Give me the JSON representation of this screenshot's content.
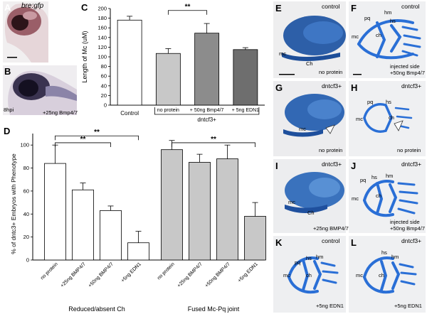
{
  "labels": {
    "a": "A",
    "b": "B",
    "c": "C",
    "d": "D",
    "e": "E",
    "f": "F",
    "g": "G",
    "h": "H",
    "i": "I",
    "j": "J",
    "k": "K",
    "l": "L"
  },
  "photos": {
    "a": {
      "title": "bre:gfp"
    },
    "b": {
      "time": "8hpi",
      "treatment": "+25ng Bmp4/7"
    },
    "e": {
      "title": "control",
      "treatment": "no protein",
      "mc": "mc",
      "ch": "Ch"
    },
    "f": {
      "title": "control",
      "side": "injected side",
      "treatment": "+50ng Bmp4/7",
      "pq": "pq",
      "hm": "hm",
      "hs": "hs",
      "mc": "mc",
      "ch": "ch"
    },
    "g": {
      "title": "dntcf3+",
      "treatment": "no protein",
      "mc": "mc"
    },
    "h": {
      "title": "dntcf3+",
      "treatment": "no protein",
      "pq": "pq",
      "hs": "hs",
      "mc": "mc",
      "ch": "ch"
    },
    "i": {
      "title": "dntcf3+",
      "treatment": "+25ng BMP4/7",
      "mc": "mc",
      "ch": "Ch"
    },
    "j": {
      "title": "dntcf3+",
      "side": "injected side",
      "treatment": "+50ng Bmp4/7",
      "pq": "pq",
      "hs": "hs",
      "hm": "hm",
      "mc": "mc",
      "ch": "ch"
    },
    "k": {
      "title": "control",
      "treatment": "+5ng EDN1",
      "pq": "pq",
      "hs": "hs",
      "hm": "hm",
      "mc": "mc",
      "ch": "ch"
    },
    "l": {
      "title": "dntcf3+",
      "treatment": "+5ng EDN1",
      "hs": "hs",
      "hm": "hm",
      "mc": "mc",
      "ch": "ch"
    }
  },
  "colors": {
    "white_bar": "#ffffff",
    "light_bar": "#c8c8c8",
    "mid_bar": "#8c8c8c",
    "dark_bar": "#6e6e6e",
    "alcian": "#2a6fd6"
  },
  "chart_data": [
    {
      "type": "bar",
      "panel": "C",
      "ylabel": "Length of Mc (uM)",
      "ylim": [
        0,
        200
      ],
      "yticks": [
        0,
        20,
        40,
        60,
        80,
        100,
        120,
        140,
        160,
        180,
        200
      ],
      "categories": [
        "Control",
        "no protein",
        "+ 50ng Bmp4/7",
        "+ 5ng EDN1"
      ],
      "values": [
        176,
        107,
        149,
        115
      ],
      "errors": [
        8,
        10,
        20,
        4
      ],
      "fills": [
        "#ffffff",
        "#c8c8c8",
        "#8c8c8c",
        "#6e6e6e"
      ],
      "group_label": "dntcf3+",
      "significance": [
        {
          "from": 1,
          "to": 2,
          "label": "**"
        }
      ]
    },
    {
      "type": "bar",
      "panel": "D",
      "ylabel": "% of dntc3+ Embryos with Phenotype",
      "ylim": [
        0,
        110
      ],
      "yticks": [
        0,
        20,
        40,
        60,
        80,
        100
      ],
      "categories": [
        "no protein",
        "+25ng BMP4/7",
        "+50ng BMP4/7",
        "+5ng EDN1",
        "no protein",
        "+25ng BMP4/7",
        "+50ng BMP4/7",
        "+5ng EDN1"
      ],
      "groups": [
        {
          "name": "Reduced/absent Ch",
          "values": [
            84,
            61,
            43,
            15
          ],
          "errors": [
            16,
            6,
            4,
            10
          ],
          "fill": "#ffffff"
        },
        {
          "name": "Fused Mc-Pq joint",
          "values": [
            96,
            85,
            88,
            38
          ],
          "errors": [
            8,
            7,
            12,
            12
          ],
          "fill": "#c8c8c8"
        }
      ],
      "significance": [
        {
          "from": 0,
          "to": 2,
          "label": "**"
        },
        {
          "from": 0,
          "to": 3,
          "label": "**"
        },
        {
          "from": 4,
          "to": 7,
          "label": "**"
        }
      ]
    }
  ]
}
